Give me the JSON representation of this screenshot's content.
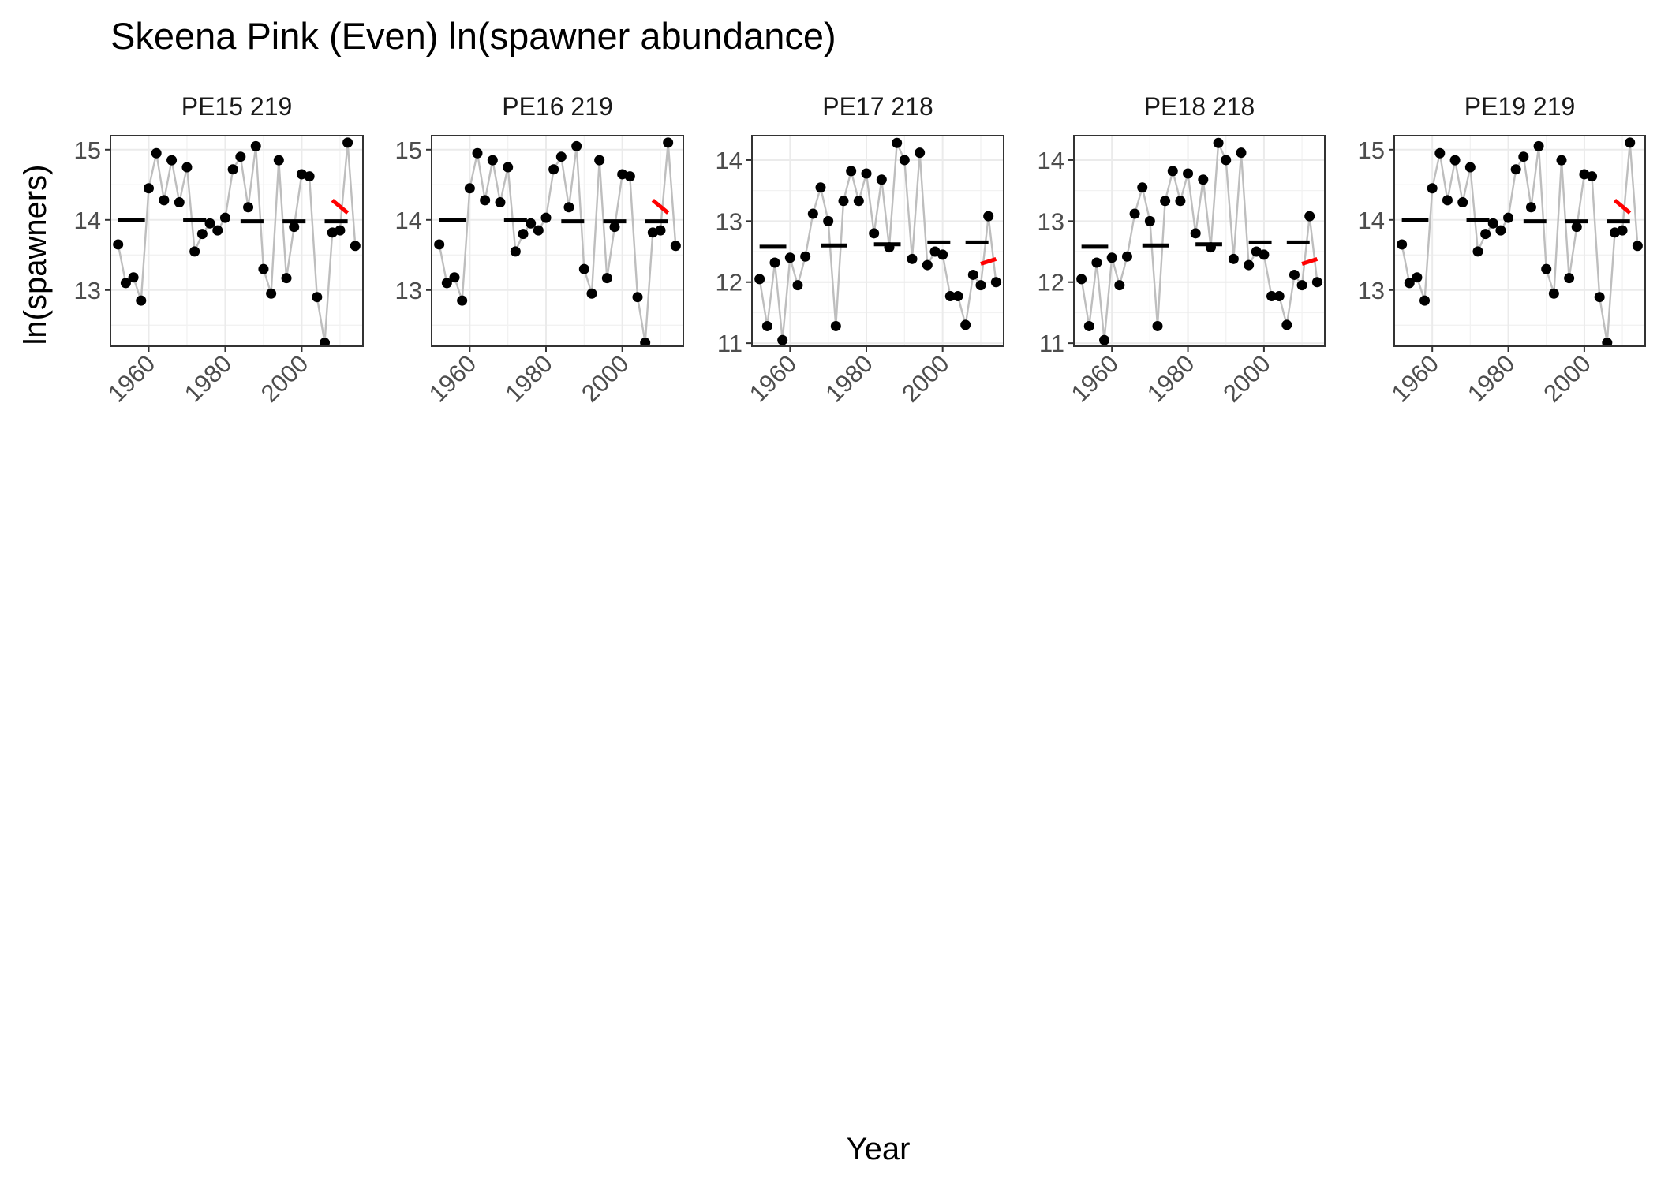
{
  "chart_data": {
    "type": "line",
    "title": "Skeena Pink (Even) ln(spawner abundance)",
    "xlabel": "Year",
    "ylabel": "ln(spawners)",
    "xlim": [
      1950,
      2016
    ],
    "x_ticks": [
      1960,
      1980,
      2000
    ],
    "grid": true,
    "colors": {
      "points": "#000000",
      "line": "#bebebe",
      "period_mean": "#000000",
      "trend": "#ff0000"
    },
    "panels": [
      {
        "name": "PE15 219",
        "ylim": [
          12.2,
          15.2
        ],
        "y_ticks": [
          13,
          14,
          15
        ],
        "x": [
          1952,
          1954,
          1956,
          1958,
          1960,
          1962,
          1964,
          1966,
          1968,
          1970,
          1972,
          1974,
          1976,
          1978,
          1980,
          1982,
          1984,
          1986,
          1988,
          1990,
          1992,
          1994,
          1996,
          1998,
          2000,
          2002,
          2004,
          2006,
          2008,
          2010,
          2012,
          2014
        ],
        "y": [
          13.65,
          13.1,
          13.18,
          12.85,
          14.45,
          14.95,
          14.28,
          14.85,
          14.25,
          14.75,
          13.55,
          13.8,
          13.95,
          13.85,
          14.03,
          14.72,
          14.9,
          14.18,
          15.05,
          13.3,
          12.95,
          14.85,
          13.17,
          13.9,
          14.65,
          14.62,
          12.9,
          12.25,
          13.82,
          13.85,
          15.1,
          13.63
        ],
        "period_means": [
          {
            "x_start": 1952,
            "x_end": 1959,
            "value": 14.0
          },
          {
            "x_start": 1969,
            "x_end": 1975,
            "value": 14.0
          },
          {
            "x_start": 1984,
            "x_end": 1990,
            "value": 13.98
          },
          {
            "x_start": 1995,
            "x_end": 2001,
            "value": 13.98
          },
          {
            "x_start": 2006,
            "x_end": 2012,
            "value": 13.98
          }
        ],
        "trend": {
          "x_start": 2008,
          "x_end": 2012,
          "y_start": 14.28,
          "y_end": 14.1
        }
      },
      {
        "name": "PE16 219",
        "ylim": [
          12.2,
          15.2
        ],
        "y_ticks": [
          13,
          14,
          15
        ],
        "x": [
          1952,
          1954,
          1956,
          1958,
          1960,
          1962,
          1964,
          1966,
          1968,
          1970,
          1972,
          1974,
          1976,
          1978,
          1980,
          1982,
          1984,
          1986,
          1988,
          1990,
          1992,
          1994,
          1996,
          1998,
          2000,
          2002,
          2004,
          2006,
          2008,
          2010,
          2012,
          2014
        ],
        "y": [
          13.65,
          13.1,
          13.18,
          12.85,
          14.45,
          14.95,
          14.28,
          14.85,
          14.25,
          14.75,
          13.55,
          13.8,
          13.95,
          13.85,
          14.03,
          14.72,
          14.9,
          14.18,
          15.05,
          13.3,
          12.95,
          14.85,
          13.17,
          13.9,
          14.65,
          14.62,
          12.9,
          12.25,
          13.82,
          13.85,
          15.1,
          13.63
        ],
        "period_means": [
          {
            "x_start": 1952,
            "x_end": 1959,
            "value": 14.0
          },
          {
            "x_start": 1969,
            "x_end": 1975,
            "value": 14.0
          },
          {
            "x_start": 1984,
            "x_end": 1990,
            "value": 13.98
          },
          {
            "x_start": 1995,
            "x_end": 2001,
            "value": 13.98
          },
          {
            "x_start": 2006,
            "x_end": 2012,
            "value": 13.98
          }
        ],
        "trend": {
          "x_start": 2008,
          "x_end": 2012,
          "y_start": 14.28,
          "y_end": 14.1
        }
      },
      {
        "name": "PE17 218",
        "ylim": [
          10.95,
          14.4
        ],
        "y_ticks": [
          11,
          12,
          13,
          14
        ],
        "x": [
          1952,
          1954,
          1956,
          1958,
          1960,
          1962,
          1964,
          1966,
          1968,
          1970,
          1972,
          1974,
          1976,
          1978,
          1980,
          1982,
          1984,
          1986,
          1988,
          1990,
          1992,
          1994,
          1996,
          1998,
          2000,
          2002,
          2004,
          2006,
          2008,
          2010,
          2012,
          2014
        ],
        "y": [
          12.05,
          11.28,
          12.32,
          11.05,
          12.4,
          11.95,
          12.42,
          13.12,
          13.55,
          13.0,
          11.28,
          13.33,
          13.82,
          13.33,
          13.78,
          12.8,
          13.68,
          12.57,
          14.28,
          14.0,
          12.38,
          14.12,
          12.28,
          12.5,
          12.45,
          11.77,
          11.77,
          11.3,
          12.12,
          11.95,
          13.08,
          12.0
        ],
        "period_means": [
          {
            "x_start": 1952,
            "x_end": 1959,
            "value": 12.58
          },
          {
            "x_start": 1968,
            "x_end": 1975,
            "value": 12.6
          },
          {
            "x_start": 1982,
            "x_end": 1989,
            "value": 12.62
          },
          {
            "x_start": 1996,
            "x_end": 2002,
            "value": 12.65
          },
          {
            "x_start": 2006,
            "x_end": 2012,
            "value": 12.65
          }
        ],
        "trend": {
          "x_start": 2010,
          "x_end": 2014,
          "y_start": 12.3,
          "y_end": 12.38
        }
      },
      {
        "name": "PE18 218",
        "ylim": [
          10.95,
          14.4
        ],
        "y_ticks": [
          11,
          12,
          13,
          14
        ],
        "x": [
          1952,
          1954,
          1956,
          1958,
          1960,
          1962,
          1964,
          1966,
          1968,
          1970,
          1972,
          1974,
          1976,
          1978,
          1980,
          1982,
          1984,
          1986,
          1988,
          1990,
          1992,
          1994,
          1996,
          1998,
          2000,
          2002,
          2004,
          2006,
          2008,
          2010,
          2012,
          2014
        ],
        "y": [
          12.05,
          11.28,
          12.32,
          11.05,
          12.4,
          11.95,
          12.42,
          13.12,
          13.55,
          13.0,
          11.28,
          13.33,
          13.82,
          13.33,
          13.78,
          12.8,
          13.68,
          12.57,
          14.28,
          14.0,
          12.38,
          14.12,
          12.28,
          12.5,
          12.45,
          11.77,
          11.77,
          11.3,
          12.12,
          11.95,
          13.08,
          12.0
        ],
        "period_means": [
          {
            "x_start": 1952,
            "x_end": 1959,
            "value": 12.58
          },
          {
            "x_start": 1968,
            "x_end": 1975,
            "value": 12.6
          },
          {
            "x_start": 1982,
            "x_end": 1989,
            "value": 12.62
          },
          {
            "x_start": 1996,
            "x_end": 2002,
            "value": 12.65
          },
          {
            "x_start": 2006,
            "x_end": 2012,
            "value": 12.65
          }
        ],
        "trend": {
          "x_start": 2010,
          "x_end": 2014,
          "y_start": 12.3,
          "y_end": 12.38
        }
      },
      {
        "name": "PE19 219",
        "ylim": [
          12.2,
          15.2
        ],
        "y_ticks": [
          13,
          14,
          15
        ],
        "x": [
          1952,
          1954,
          1956,
          1958,
          1960,
          1962,
          1964,
          1966,
          1968,
          1970,
          1972,
          1974,
          1976,
          1978,
          1980,
          1982,
          1984,
          1986,
          1988,
          1990,
          1992,
          1994,
          1996,
          1998,
          2000,
          2002,
          2004,
          2006,
          2008,
          2010,
          2012,
          2014
        ],
        "y": [
          13.65,
          13.1,
          13.18,
          12.85,
          14.45,
          14.95,
          14.28,
          14.85,
          14.25,
          14.75,
          13.55,
          13.8,
          13.95,
          13.85,
          14.03,
          14.72,
          14.9,
          14.18,
          15.05,
          13.3,
          12.95,
          14.85,
          13.17,
          13.9,
          14.65,
          14.62,
          12.9,
          12.25,
          13.82,
          13.85,
          15.1,
          13.63
        ],
        "period_means": [
          {
            "x_start": 1952,
            "x_end": 1959,
            "value": 14.0
          },
          {
            "x_start": 1969,
            "x_end": 1975,
            "value": 14.0
          },
          {
            "x_start": 1984,
            "x_end": 1990,
            "value": 13.98
          },
          {
            "x_start": 1995,
            "x_end": 2001,
            "value": 13.98
          },
          {
            "x_start": 2006,
            "x_end": 2012,
            "value": 13.98
          }
        ],
        "trend": {
          "x_start": 2008,
          "x_end": 2012,
          "y_start": 14.28,
          "y_end": 14.1
        }
      }
    ]
  }
}
